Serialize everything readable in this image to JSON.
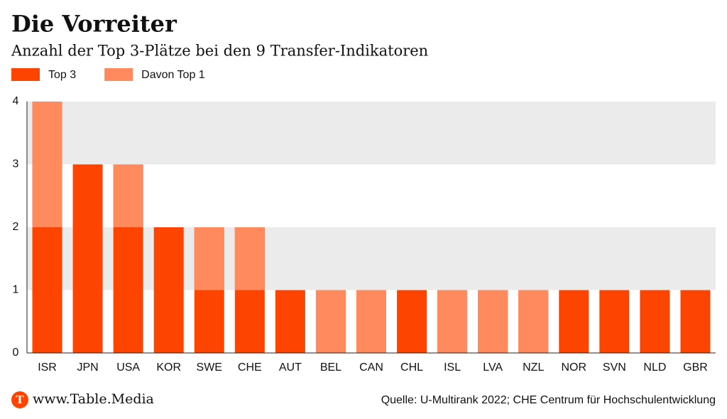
{
  "chart_data": {
    "type": "bar",
    "title": "Die Vorreiter",
    "subtitle": "Anzahl der Top 3-Plätze bei den 9 Transfer-Indikatoren",
    "categories": [
      "ISR",
      "JPN",
      "USA",
      "KOR",
      "SWE",
      "CHE",
      "AUT",
      "BEL",
      "CAN",
      "CHL",
      "ISL",
      "LVA",
      "NZL",
      "NOR",
      "SVN",
      "NLD",
      "GBR"
    ],
    "series": [
      {
        "name": "Top 3",
        "color": "#fd4400",
        "values": [
          4,
          3,
          3,
          2,
          2,
          2,
          1,
          1,
          1,
          1,
          1,
          1,
          1,
          1,
          1,
          1,
          1
        ]
      },
      {
        "name": "Davon Top 1",
        "color": "#ff8a5e",
        "values": [
          2,
          0,
          1,
          0,
          1,
          1,
          0,
          1,
          1,
          0,
          1,
          1,
          1,
          0,
          0,
          0,
          0
        ]
      }
    ],
    "ylim": [
      0,
      4
    ],
    "yticks": [
      0,
      1,
      2,
      3,
      4
    ],
    "grid": true,
    "brand": "www.Table.Media",
    "source": "Quelle: U-Multirank 2022; CHE Centrum für Hochschulentwicklung"
  }
}
